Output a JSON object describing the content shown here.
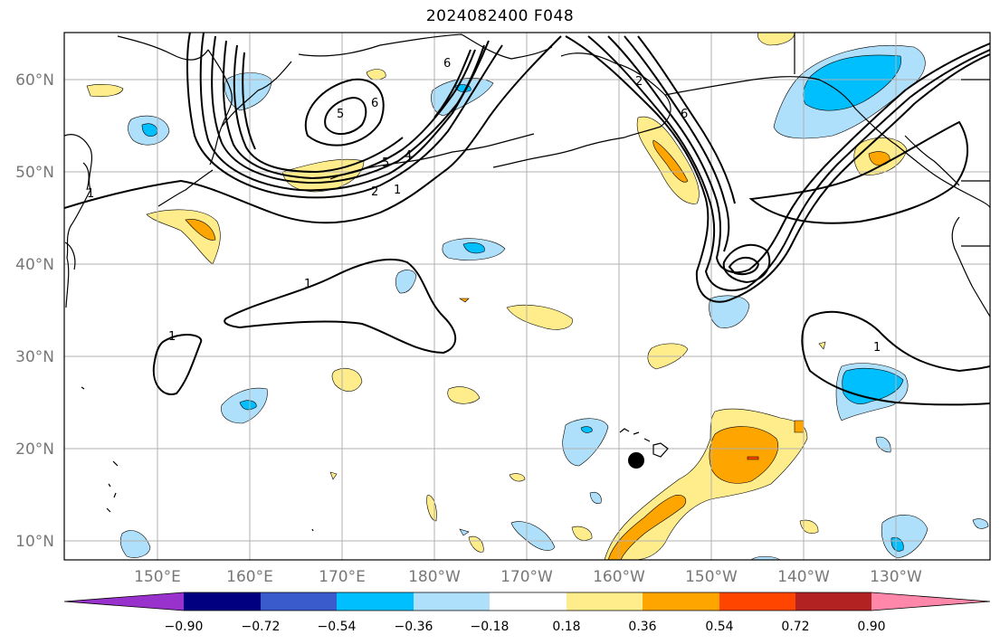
{
  "title": "2024082400 F048",
  "lat_labels": [
    "60°N",
    "50°N",
    "40°N",
    "30°N",
    "20°N",
    "10°N"
  ],
  "lon_labels": [
    "150°E",
    "160°E",
    "170°E",
    "180°W",
    "170°W",
    "160°W",
    "150°W",
    "140°W",
    "130°W"
  ],
  "colorbar": {
    "colors": [
      "#9932cc",
      "#000080",
      "#3a5bcc",
      "#00bfff",
      "#afe0fb",
      "#ffffff",
      "#ffec8b",
      "#ffa500",
      "#ff4500",
      "#b22222",
      "#ff88aa"
    ],
    "tick_labels": [
      "−0.90",
      "−0.72",
      "−0.54",
      "−0.36",
      "−0.18",
      "0.18",
      "0.36",
      "0.54",
      "0.72",
      "0.90"
    ]
  },
  "contour_labels": [
    "1",
    "1",
    "1",
    "1",
    "1",
    "2",
    "2",
    "4",
    "5",
    "5",
    "6",
    "6",
    "6"
  ],
  "fill_colors": {
    "light_blue": "#afe0fb",
    "blue": "#00bfff",
    "yellow": "#ffec8b",
    "orange": "#ffa500",
    "red": "#ff4500"
  }
}
